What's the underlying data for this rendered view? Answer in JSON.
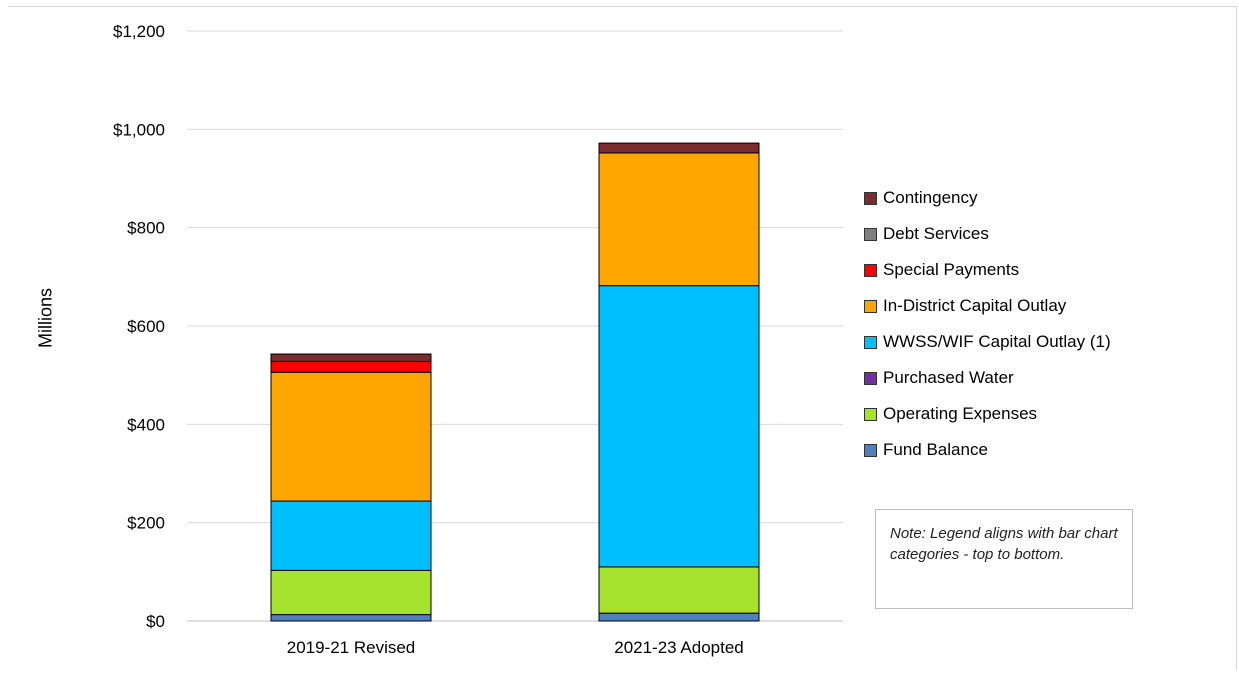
{
  "chart_data": {
    "type": "bar",
    "stacked": true,
    "categories": [
      "2019-21 Revised",
      "2021-23 Adopted"
    ],
    "ylabel": "Millions",
    "ylim": [
      0,
      1200
    ],
    "yticks": [
      "$0",
      "$200",
      "$400",
      "$600",
      "$800",
      "$1,000",
      "$1,200"
    ],
    "ytick_values": [
      0,
      200,
      400,
      600,
      800,
      1000,
      1200
    ],
    "grid": true,
    "legend_position": "right",
    "series": [
      {
        "name": "Fund Balance",
        "color": "#4f81bd",
        "values": [
          13,
          16
        ]
      },
      {
        "name": "Operating Expenses",
        "color": "#a6e22e",
        "values": [
          90,
          94
        ]
      },
      {
        "name": "Purchased Water",
        "color": "#7030a0",
        "values": [
          0,
          0
        ]
      },
      {
        "name": "WWSS/WIF Capital Outlay (1)",
        "color": "#00bfff",
        "values": [
          141,
          572
        ]
      },
      {
        "name": "In-District Capital Outlay",
        "color": "#ffa500",
        "values": [
          262,
          270
        ]
      },
      {
        "name": "Special Payments",
        "color": "#ff0000",
        "values": [
          22,
          0
        ]
      },
      {
        "name": "Debt Services",
        "color": "#7f7f7f",
        "values": [
          0,
          0
        ]
      },
      {
        "name": "Contingency",
        "color": "#7b2c2c",
        "values": [
          15,
          20
        ]
      }
    ],
    "note": "Note: Legend aligns with bar chart categories - top to bottom."
  }
}
